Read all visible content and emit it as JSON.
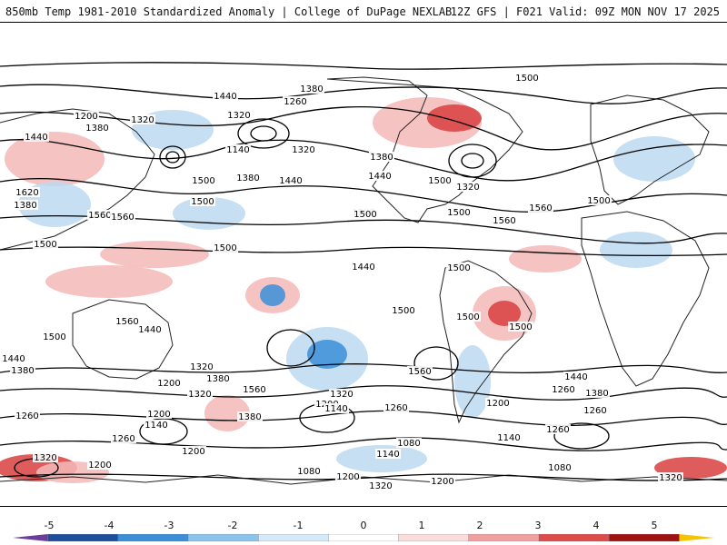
{
  "header": {
    "title_left": "850mb Temp 1981-2010 Standardized Anomaly | College of DuPage NEXLAB",
    "title_right": "12Z GFS | F021 Valid: 09Z MON NOV 17 2025"
  },
  "colorbar": {
    "ticks": [
      "-5",
      "-4",
      "-3",
      "-2",
      "-1",
      "0",
      "1",
      "2",
      "3",
      "4",
      "5"
    ],
    "colors": [
      "#6a3d9a",
      "#1f4e9c",
      "#3a8fd8",
      "#8cc3ec",
      "#d6e9f8",
      "#ffffff",
      "#fbdcdc",
      "#f0a0a0",
      "#dd4b4b",
      "#a01212",
      "#6e0a0a",
      "#f5c400"
    ]
  },
  "contour_labels": {
    "color": "#000000",
    "items": [
      "1440",
      "1380",
      "1500",
      "1260",
      "1200",
      "1320",
      "1380",
      "1320",
      "1140",
      "1320",
      "1500",
      "1380",
      "1440",
      "1380",
      "1440",
      "1500",
      "1320",
      "1500",
      "1560",
      "1440",
      "1380",
      "1620",
      "1560",
      "1560",
      "1500",
      "1500",
      "1500",
      "1500",
      "1500",
      "1500",
      "1440",
      "1500",
      "1500",
      "1500",
      "1500",
      "1440",
      "1560",
      "1500",
      "1560",
      "1560",
      "1440",
      "1380",
      "1320",
      "1380",
      "1200",
      "1320",
      "1380",
      "1260",
      "1140",
      "1200",
      "1560",
      "1320",
      "1200",
      "1140",
      "1260",
      "1200",
      "1080",
      "1140",
      "1200",
      "1260",
      "1080",
      "1200",
      "1140",
      "1320",
      "1320",
      "1200",
      "1080",
      "1260",
      "1200",
      "1320",
      "1260",
      "1440",
      "1380",
      "1260"
    ]
  },
  "anomaly_regions": {
    "items": [
      "warm",
      "warm",
      "cool",
      "warm",
      "cool",
      "cool",
      "warm",
      "warm",
      "cool",
      "warm",
      "warm",
      "cool",
      "warm",
      "warm",
      "cool",
      "warm",
      "cool",
      "warm",
      "warm",
      "cool",
      "warm",
      "cool",
      "warm"
    ]
  }
}
